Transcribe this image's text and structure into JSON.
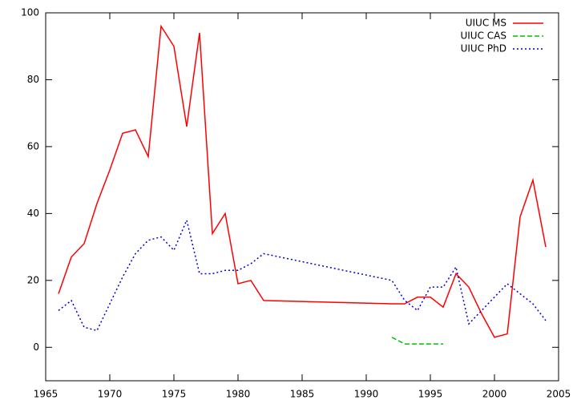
{
  "chart_data": {
    "type": "line",
    "x": [
      1966,
      1967,
      1968,
      1969,
      1970,
      1971,
      1972,
      1973,
      1974,
      1975,
      1976,
      1977,
      1978,
      1979,
      1980,
      1981,
      1982,
      1992,
      1993,
      1994,
      1995,
      1996,
      1997,
      1998,
      1999,
      2000,
      2001,
      2002,
      2003,
      2004
    ],
    "series": [
      {
        "name": "UIUC MS",
        "color": "#ff0000",
        "dash": "solid",
        "values": [
          16,
          27,
          31,
          43,
          53,
          64,
          65,
          57,
          96,
          90,
          66,
          94,
          34,
          40,
          19,
          20,
          14,
          13,
          13,
          15,
          15,
          12,
          22,
          18,
          10,
          3,
          4,
          39,
          50,
          30
        ]
      },
      {
        "name": "UIUC CAS",
        "color": "#00c000",
        "dash": "dashed",
        "values": [
          null,
          null,
          null,
          null,
          null,
          null,
          null,
          null,
          null,
          null,
          null,
          null,
          null,
          null,
          null,
          null,
          null,
          3,
          1,
          1,
          1,
          1,
          null,
          null,
          null,
          null,
          null,
          null,
          null,
          null
        ]
      },
      {
        "name": "UIUC PhD",
        "color": "#0000d0",
        "dash": "dotted",
        "values": [
          11,
          14,
          6,
          5,
          13,
          21,
          28,
          32,
          33,
          29,
          38,
          22,
          22,
          23,
          23,
          25,
          28,
          20,
          14,
          11,
          18,
          18,
          24,
          7,
          11,
          15,
          19,
          16,
          13,
          8
        ]
      }
    ],
    "xlim": [
      1965,
      2005
    ],
    "xticks": [
      1965,
      1970,
      1975,
      1980,
      1985,
      1990,
      1995,
      2000,
      2005
    ],
    "ylim": [
      -10,
      100
    ],
    "yticks": [
      0,
      20,
      40,
      60,
      80,
      100
    ],
    "legend": "top-right"
  }
}
